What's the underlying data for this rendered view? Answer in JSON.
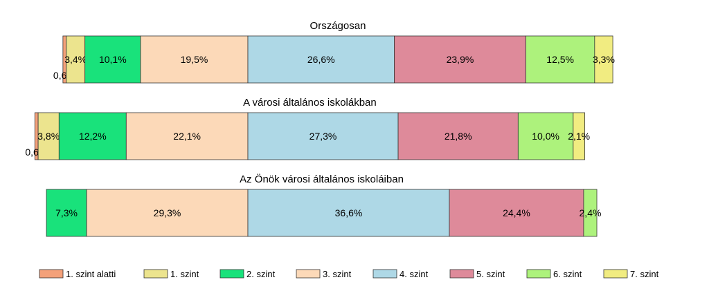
{
  "chart_data": {
    "type": "bar",
    "orientation": "horizontal-stacked-percent",
    "legend_position": "bottom",
    "categories": [
      "1. szint alatti",
      "1. szint",
      "2. szint",
      "3. szint",
      "4. szint",
      "5. szint",
      "6. szint",
      "7. szint"
    ],
    "colors": [
      "#f4a17a",
      "#ece48e",
      "#19e27b",
      "#fcd9b8",
      "#aed8e6",
      "#de8a9a",
      "#adf27c",
      "#f1ec81"
    ],
    "charts": [
      {
        "title": "Országosan",
        "values": [
          0.6,
          3.4,
          10.1,
          19.5,
          26.6,
          23.9,
          12.5,
          3.3
        ],
        "labels": [
          "0,6%",
          "3,4%",
          "10,1%",
          "19,5%",
          "26,6%",
          "23,9%",
          "12,5%",
          "3,3%"
        ]
      },
      {
        "title": "A városi általános iskolákban",
        "values": [
          0.6,
          3.8,
          12.2,
          22.1,
          27.3,
          21.8,
          10.0,
          2.1
        ],
        "labels": [
          "0,6%",
          "3,8%",
          "12,2%",
          "22,1%",
          "27,3%",
          "21,8%",
          "10,0%",
          "2,1%"
        ]
      },
      {
        "title": "Az Önök városi általános iskoláiban",
        "values": [
          0,
          0,
          7.3,
          29.3,
          36.6,
          24.4,
          2.4,
          0
        ],
        "labels": [
          "",
          "",
          "7,3%",
          "29,3%",
          "36,6%",
          "24,4%",
          "2,4%",
          ""
        ]
      }
    ]
  }
}
